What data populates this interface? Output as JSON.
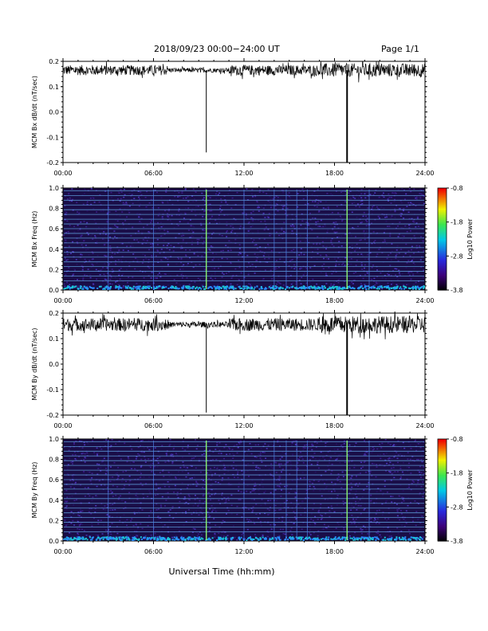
{
  "header": {
    "title": "2018/09/23  00:00−24:00 UT",
    "page": "Page 1/1"
  },
  "footer": {
    "xlabel": "Universal Time (hh:mm)"
  },
  "colors": {
    "trace": "#000000",
    "spec_bg": "#1a0e48",
    "harmonic": "#6fc2ff",
    "spike": "#90ff70"
  },
  "chart_data": [
    {
      "type": "line",
      "ylabel": "MCM Bx dB/dt (nT/sec)",
      "x_range": [
        "00:00",
        "24:00"
      ],
      "xticks": [
        "00:00",
        "06:00",
        "12:00",
        "18:00",
        "24:00"
      ],
      "ylim": [
        -0.2,
        0.2
      ],
      "yticks": [
        -0.2,
        -0.1,
        0.0,
        0.1,
        0.2
      ],
      "baseline": 0.165,
      "noise_amplitude": 0.02,
      "spikes": [
        {
          "time": "09:30",
          "value": -0.16
        },
        {
          "time": "18:50",
          "value": -0.2
        }
      ]
    },
    {
      "type": "heatmap",
      "ylabel": "MCM Bx Freq (Hz)",
      "x_range": [
        "00:00",
        "24:00"
      ],
      "xticks": [
        "00:00",
        "06:00",
        "12:00",
        "18:00",
        "24:00"
      ],
      "ylim": [
        0.0,
        1.0
      ],
      "yticks": [
        0.0,
        0.2,
        0.4,
        0.6,
        0.8,
        1.0
      ],
      "colorbar": {
        "label": "Log10 Power",
        "ticks": [
          -3.8,
          -2.8,
          -1.8,
          -0.8
        ],
        "range": [
          -3.8,
          -0.8
        ]
      },
      "spikes": [
        "09:30",
        "18:50"
      ]
    },
    {
      "type": "line",
      "ylabel": "MCM By dB/dt (nT/sec)",
      "x_range": [
        "00:00",
        "24:00"
      ],
      "xticks": [
        "00:00",
        "06:00",
        "12:00",
        "18:00",
        "24:00"
      ],
      "ylim": [
        -0.2,
        0.2
      ],
      "yticks": [
        -0.2,
        -0.1,
        0.0,
        0.1,
        0.2
      ],
      "baseline": 0.155,
      "noise_amplitude": 0.025,
      "spikes": [
        {
          "time": "09:30",
          "value": -0.19
        },
        {
          "time": "18:50",
          "value": -0.2
        }
      ]
    },
    {
      "type": "heatmap",
      "ylabel": "MCM By Freq (Hz)",
      "x_range": [
        "00:00",
        "24:00"
      ],
      "xticks": [
        "00:00",
        "06:00",
        "12:00",
        "18:00",
        "24:00"
      ],
      "ylim": [
        0.0,
        1.0
      ],
      "yticks": [
        0.0,
        0.2,
        0.4,
        0.6,
        0.8,
        1.0
      ],
      "colorbar": {
        "label": "Log10 Power",
        "ticks": [
          -3.8,
          -2.8,
          -1.8,
          -0.8
        ],
        "range": [
          -3.8,
          -0.8
        ]
      },
      "spikes": [
        "09:30",
        "18:50"
      ]
    }
  ]
}
